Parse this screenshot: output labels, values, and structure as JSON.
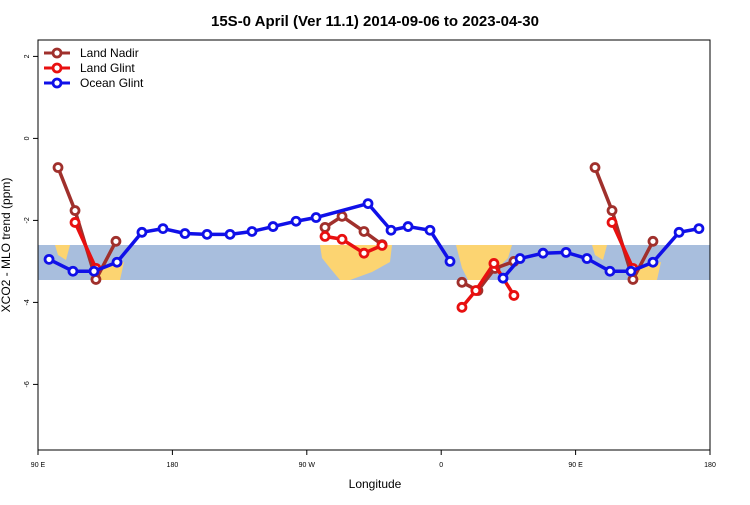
{
  "chart_data": {
    "type": "line",
    "title": "15S-0 April (Ver 11.1)   2014-09-06 to 2023-04-30",
    "xlabel": "Longitude",
    "ylabel": "XCO2 - MLO trend (ppm)",
    "xlim": [
      90,
      540
    ],
    "ylim": [
      -7.6,
      2.4
    ],
    "xticks": [
      {
        "value": 90,
        "label": "90 E"
      },
      180,
      {
        "value": 270,
        "label": "90 W"
      },
      {
        "value": 360,
        "label": "0"
      },
      {
        "value": 450,
        "label": "90 E"
      },
      {
        "value": 540,
        "label": "180"
      }
    ],
    "yticks": [
      2,
      0,
      -2,
      -4,
      -6
    ],
    "legend": "top-left",
    "series": [
      {
        "name": "Land Nadir",
        "color": "#a0302c",
        "x": [
          103.4,
          114.8,
          128.8,
          142.2,
          null,
          282.2,
          293.6,
          308.3,
          320.4,
          null,
          373.9,
          384.6,
          396,
          408.7,
          null,
          463,
          474.4,
          488.4,
          501.8
        ],
        "values": [
          -0.71,
          -1.76,
          -3.44,
          -2.51,
          null,
          -2.17,
          -1.9,
          -2.27,
          -2.59,
          null,
          -3.51,
          -3.71,
          -3.17,
          -3.0,
          null,
          -0.71,
          -1.76,
          -3.44,
          -2.51
        ]
      },
      {
        "name": "Land Glint",
        "color": "#e81010",
        "x": [
          114.8,
          128.8,
          null,
          282.2,
          293.6,
          308.3,
          320.4,
          null,
          373.9,
          383.2,
          395.3,
          408.7,
          null,
          474.4,
          488.4
        ],
        "values": [
          -2.05,
          -3.17,
          null,
          -2.39,
          -2.46,
          -2.8,
          -2.61,
          null,
          -4.12,
          -3.71,
          -3.05,
          -3.83,
          null,
          -2.05,
          -3.17
        ]
      },
      {
        "name": "Ocean Glint",
        "color": "#1010e8",
        "x": [
          97.4,
          113.4,
          127.5,
          142.9,
          159.6,
          173.7,
          188.4,
          203.2,
          218.6,
          233.3,
          247.4,
          262.8,
          276.2,
          311,
          326.4,
          337.8,
          352.5,
          365.9,
          null,
          401.4,
          412.8,
          428.2,
          443.6,
          457.6,
          473,
          487.1,
          501.8,
          519.3,
          532.6
        ],
        "values": [
          -2.95,
          -3.24,
          -3.24,
          -3.02,
          -2.29,
          -2.2,
          -2.32,
          -2.34,
          -2.34,
          -2.27,
          -2.15,
          -2.02,
          -1.93,
          -1.59,
          -2.24,
          -2.15,
          -2.24,
          -3.0,
          null,
          -3.41,
          -2.93,
          -2.8,
          -2.78,
          -2.93,
          -3.24,
          -3.24,
          -3.02,
          -2.29,
          -2.2
        ]
      }
    ]
  }
}
